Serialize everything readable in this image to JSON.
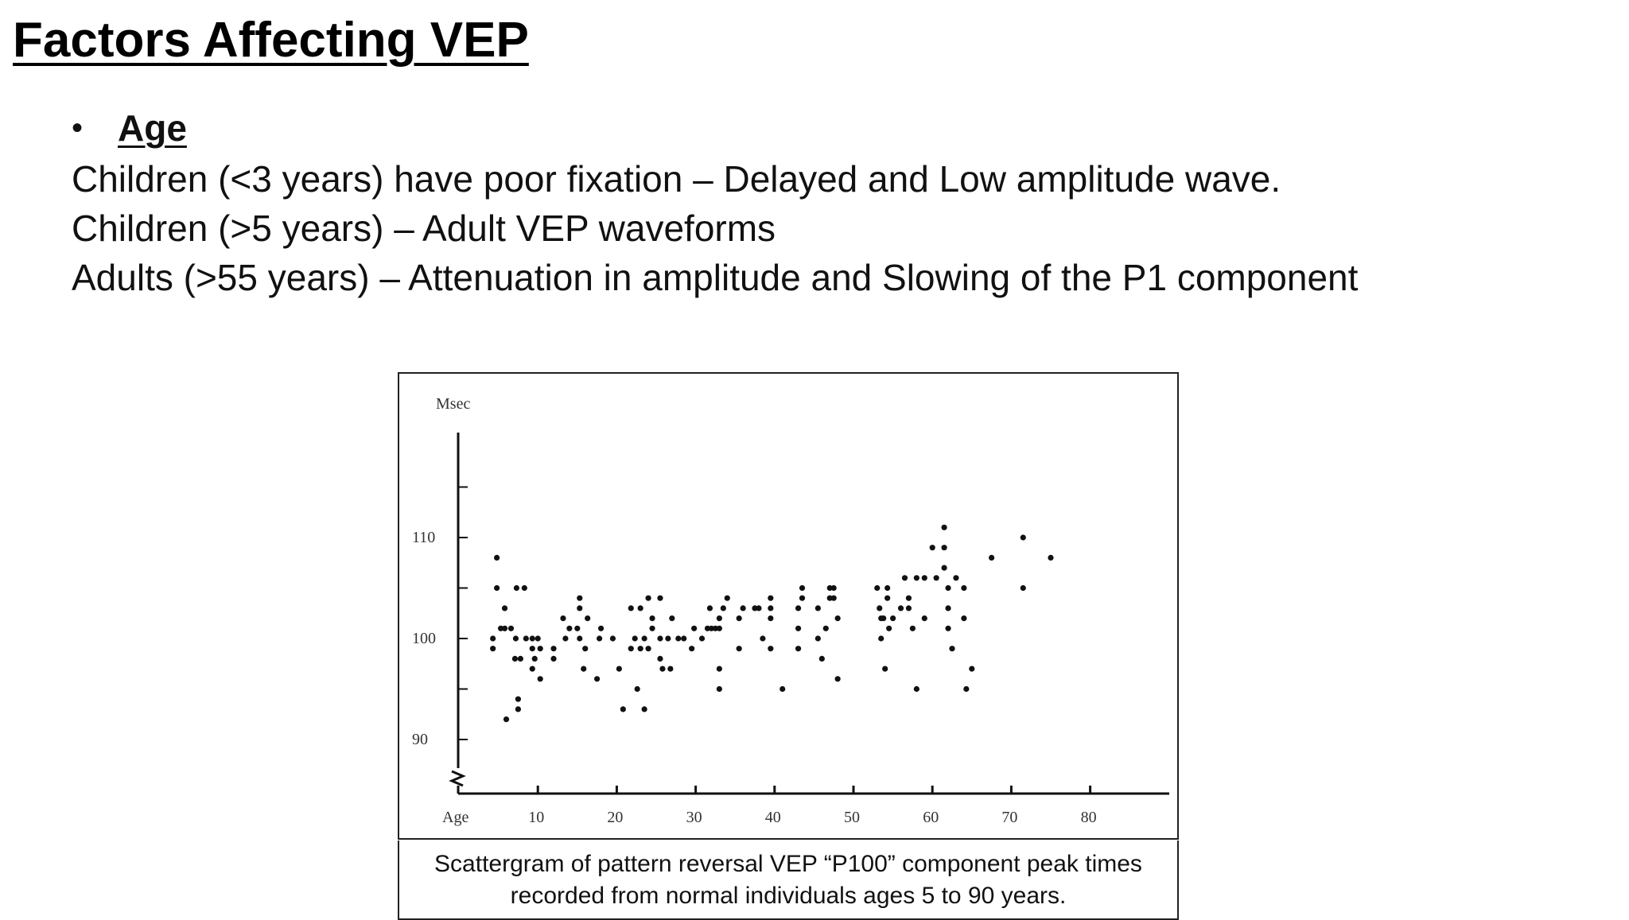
{
  "slide": {
    "title": "Factors Affecting VEP",
    "bullet_heading": "Age",
    "lines": [
      "Children (<3 years) have poor fixation – Delayed and Low amplitude wave.",
      "Children (>5 years) – Adult VEP waveforms",
      "Adults (>55 years) – Attenuation in amplitude and Slowing of the P1 component"
    ]
  },
  "caption": {
    "line1": "Scattergram of pattern reversal VEP “P100” component peak times",
    "line2": "recorded from normal individuals ages 5 to 90 years."
  },
  "chart_data": {
    "type": "scatter",
    "title": "",
    "xlabel": "Age",
    "ylabel": "Msec",
    "xlim": [
      0,
      95
    ],
    "ylim": [
      85,
      120
    ],
    "x_ticks": [
      10,
      20,
      30,
      40,
      50,
      60,
      70,
      80
    ],
    "y_ticks": [
      90,
      100,
      110
    ],
    "grid": false,
    "marker_color": "#111111",
    "points": [
      [
        4.3,
        100
      ],
      [
        4.3,
        99
      ],
      [
        4.8,
        108
      ],
      [
        4.8,
        105
      ],
      [
        5.3,
        101
      ],
      [
        5.8,
        103
      ],
      [
        5.8,
        101
      ],
      [
        6.0,
        92
      ],
      [
        6.6,
        101
      ],
      [
        7.1,
        98
      ],
      [
        7.2,
        100
      ],
      [
        7.3,
        105
      ],
      [
        7.5,
        94
      ],
      [
        7.5,
        93
      ],
      [
        7.8,
        98
      ],
      [
        8.3,
        105
      ],
      [
        8.5,
        100
      ],
      [
        9.3,
        100
      ],
      [
        9.3,
        99
      ],
      [
        9.3,
        97
      ],
      [
        9.6,
        98
      ],
      [
        10.0,
        100
      ],
      [
        10.3,
        96
      ],
      [
        10.3,
        99
      ],
      [
        12.0,
        98
      ],
      [
        12.0,
        99
      ],
      [
        13.2,
        102
      ],
      [
        13.5,
        100
      ],
      [
        14.0,
        101
      ],
      [
        15.0,
        101
      ],
      [
        15.3,
        104
      ],
      [
        15.3,
        103
      ],
      [
        15.3,
        100
      ],
      [
        15.8,
        97
      ],
      [
        16.0,
        99
      ],
      [
        16.3,
        102
      ],
      [
        17.5,
        96
      ],
      [
        17.8,
        100
      ],
      [
        18.0,
        101
      ],
      [
        19.5,
        100
      ],
      [
        20.3,
        97
      ],
      [
        20.8,
        93
      ],
      [
        21.8,
        103
      ],
      [
        21.8,
        99
      ],
      [
        22.3,
        100
      ],
      [
        22.6,
        95
      ],
      [
        23.0,
        99
      ],
      [
        23.0,
        103
      ],
      [
        23.5,
        100
      ],
      [
        23.5,
        93
      ],
      [
        24.0,
        104
      ],
      [
        24.0,
        99
      ],
      [
        24.5,
        101
      ],
      [
        24.5,
        102
      ],
      [
        25.5,
        100
      ],
      [
        25.5,
        104
      ],
      [
        25.5,
        98
      ],
      [
        25.8,
        97
      ],
      [
        26.5,
        100
      ],
      [
        26.8,
        97
      ],
      [
        27.0,
        102
      ],
      [
        27.8,
        100
      ],
      [
        28.5,
        100
      ],
      [
        29.5,
        99
      ],
      [
        29.8,
        101
      ],
      [
        30.8,
        100
      ],
      [
        31.5,
        101
      ],
      [
        31.8,
        103
      ],
      [
        32.0,
        101
      ],
      [
        32.5,
        101
      ],
      [
        33.0,
        102
      ],
      [
        33.0,
        101
      ],
      [
        33.0,
        97
      ],
      [
        33.0,
        95
      ],
      [
        33.5,
        103
      ],
      [
        34.0,
        104
      ],
      [
        35.5,
        102
      ],
      [
        35.5,
        99
      ],
      [
        36.0,
        103
      ],
      [
        37.5,
        103
      ],
      [
        38.0,
        103
      ],
      [
        38.5,
        100
      ],
      [
        39.5,
        104
      ],
      [
        39.5,
        103
      ],
      [
        39.5,
        99
      ],
      [
        39.5,
        102
      ],
      [
        41.0,
        95
      ],
      [
        43.0,
        101
      ],
      [
        43.0,
        103
      ],
      [
        43.0,
        99
      ],
      [
        43.5,
        104
      ],
      [
        43.5,
        105
      ],
      [
        45.5,
        103
      ],
      [
        45.5,
        100
      ],
      [
        46.0,
        98
      ],
      [
        46.5,
        101
      ],
      [
        47.0,
        105
      ],
      [
        47.0,
        104
      ],
      [
        47.5,
        105
      ],
      [
        47.5,
        104
      ],
      [
        48.0,
        102
      ],
      [
        48.0,
        96
      ],
      [
        53.0,
        105
      ],
      [
        53.3,
        103
      ],
      [
        53.5,
        102
      ],
      [
        53.5,
        100
      ],
      [
        53.8,
        102
      ],
      [
        54.0,
        97
      ],
      [
        54.3,
        104
      ],
      [
        54.3,
        105
      ],
      [
        54.5,
        101
      ],
      [
        55.0,
        102
      ],
      [
        56.0,
        103
      ],
      [
        56.5,
        106
      ],
      [
        57.0,
        104
      ],
      [
        57.0,
        103
      ],
      [
        57.5,
        101
      ],
      [
        58.0,
        106
      ],
      [
        58.0,
        95
      ],
      [
        59.0,
        106
      ],
      [
        59.0,
        102
      ],
      [
        60.0,
        109
      ],
      [
        60.5,
        106
      ],
      [
        61.5,
        111
      ],
      [
        61.5,
        109
      ],
      [
        61.5,
        107
      ],
      [
        62.0,
        105
      ],
      [
        62.0,
        101
      ],
      [
        62.0,
        103
      ],
      [
        62.5,
        99
      ],
      [
        63.0,
        106
      ],
      [
        64.0,
        105
      ],
      [
        64.0,
        102
      ],
      [
        64.3,
        95
      ],
      [
        65.0,
        97
      ],
      [
        67.5,
        108
      ],
      [
        71.5,
        110
      ],
      [
        71.5,
        105
      ],
      [
        75.0,
        108
      ]
    ]
  }
}
